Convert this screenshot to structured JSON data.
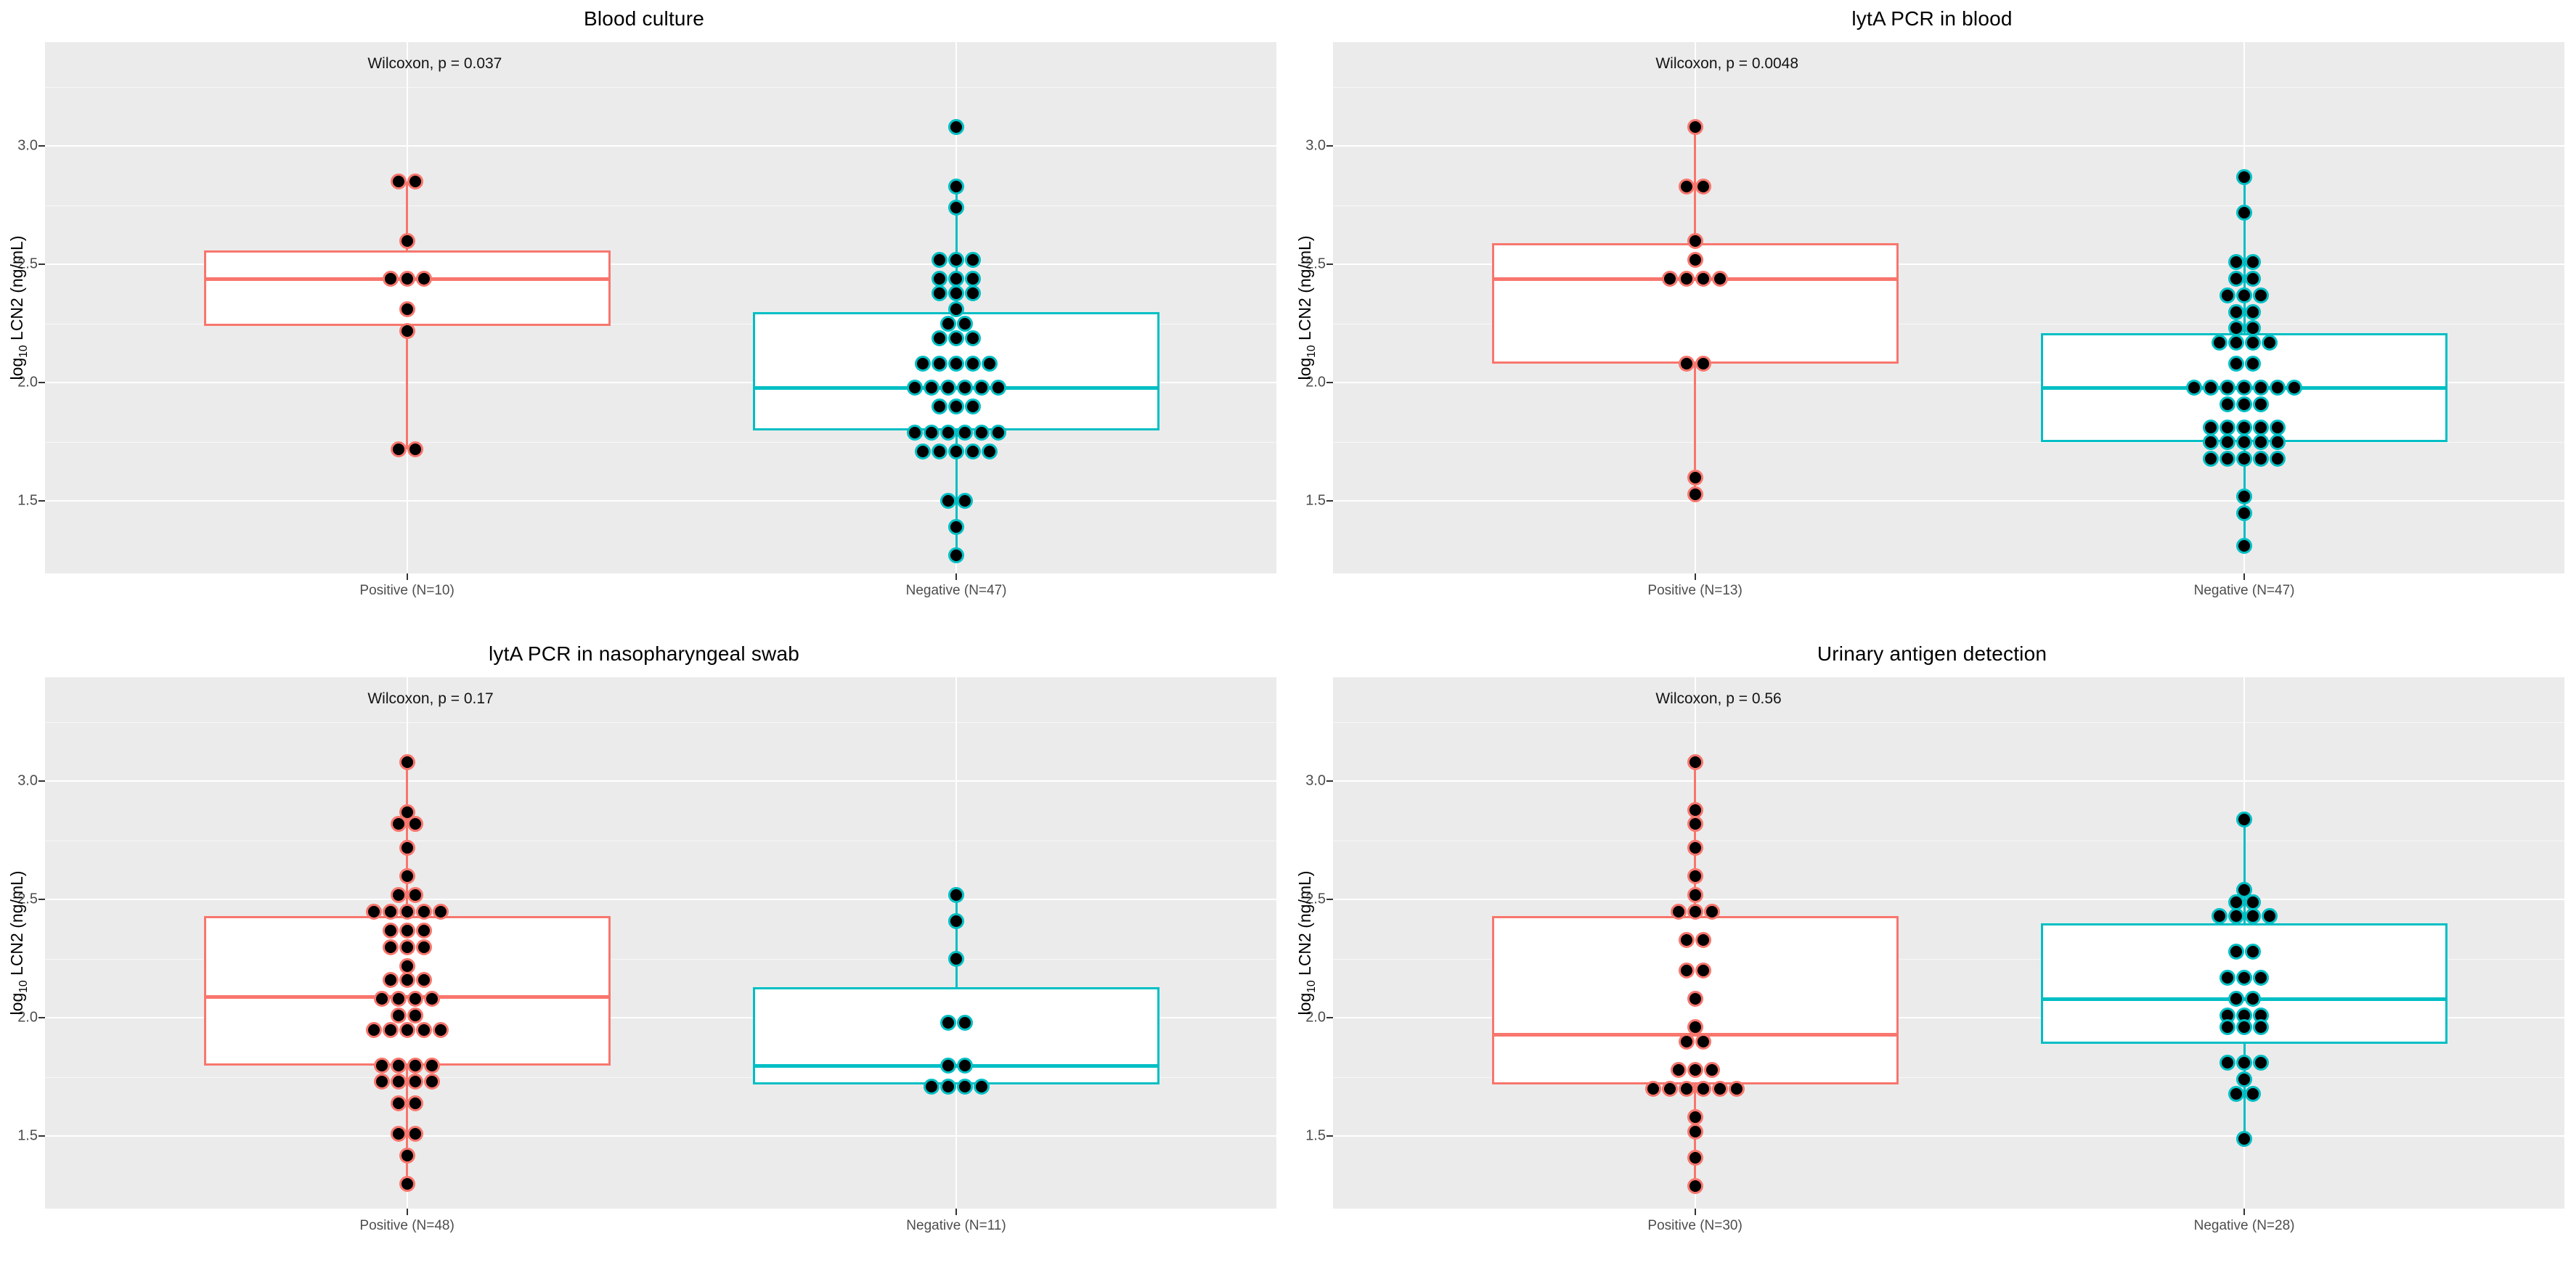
{
  "figure": {
    "background": "#FFFFFF",
    "panel_background": "#EBEBEB",
    "grid_color": "#FFFFFF"
  },
  "colors": {
    "positive": "#F8766D",
    "negative": "#00BFC4",
    "dot_fill": "#000000",
    "axis_text": "#4D4D4D",
    "title_text": "#000000"
  },
  "axis": {
    "ylabel": {
      "prefix": "log",
      "sub": "10",
      "suffix": " LCN2 (ng/mL)"
    },
    "ticks": [
      3.0,
      2.5,
      2.0,
      1.5
    ],
    "tick_labels": [
      "3.0",
      "2.5",
      "2.0",
      "1.5"
    ],
    "minor_ticks": [
      3.25,
      2.75,
      2.25,
      1.75
    ],
    "ylim": [
      1.2,
      3.44
    ],
    "grid": "on",
    "legend": "none"
  },
  "chart_data": [
    {
      "type": "boxplot-dotplot",
      "title": "Blood culture",
      "subtitle": "Wilcoxon, p = 0.037",
      "p_value": "0.037",
      "categories": [
        "Positive (N=10)",
        "Negative (N=47)"
      ],
      "groups": [
        {
          "label": "Positive (N=10)",
          "n": 10,
          "color_key": "positive",
          "box": {
            "q1": 2.24,
            "median": 2.44,
            "q3": 2.56,
            "whisker_low": 1.72,
            "whisker_high": 2.85
          },
          "dot_stacks": [
            [
              2.85,
              2
            ],
            [
              2.6,
              1
            ],
            [
              2.44,
              3
            ],
            [
              2.31,
              1
            ],
            [
              2.22,
              1
            ],
            [
              1.72,
              2
            ]
          ]
        },
        {
          "label": "Negative (N=47)",
          "n": 47,
          "color_key": "negative",
          "box": {
            "q1": 1.8,
            "median": 1.98,
            "q3": 2.3,
            "whisker_low": 1.29,
            "whisker_high": 2.83
          },
          "dot_stacks": [
            [
              3.08,
              1
            ],
            [
              2.83,
              1
            ],
            [
              2.74,
              1
            ],
            [
              2.52,
              3
            ],
            [
              2.44,
              3
            ],
            [
              2.38,
              3
            ],
            [
              2.31,
              1
            ],
            [
              2.25,
              2
            ],
            [
              2.19,
              3
            ],
            [
              2.08,
              5
            ],
            [
              1.98,
              6
            ],
            [
              1.9,
              3
            ],
            [
              1.79,
              6
            ],
            [
              1.71,
              5
            ],
            [
              1.5,
              2
            ],
            [
              1.39,
              1
            ],
            [
              1.27,
              1
            ]
          ]
        }
      ]
    },
    {
      "type": "boxplot-dotplot",
      "title": "lytA PCR in blood",
      "subtitle": "Wilcoxon, p = 0.0048",
      "p_value": "0.0048",
      "categories": [
        "Positive (N=13)",
        "Negative (N=47)"
      ],
      "groups": [
        {
          "label": "Positive (N=13)",
          "n": 13,
          "color_key": "positive",
          "box": {
            "q1": 2.08,
            "median": 2.44,
            "q3": 2.59,
            "whisker_low": 1.53,
            "whisker_high": 3.08
          },
          "dot_stacks": [
            [
              3.08,
              1
            ],
            [
              2.83,
              2
            ],
            [
              2.6,
              1
            ],
            [
              2.52,
              1
            ],
            [
              2.44,
              4
            ],
            [
              2.08,
              2
            ],
            [
              1.6,
              1
            ],
            [
              1.53,
              1
            ]
          ]
        },
        {
          "label": "Negative (N=47)",
          "n": 47,
          "color_key": "negative",
          "box": {
            "q1": 1.75,
            "median": 1.98,
            "q3": 2.21,
            "whisker_low": 1.31,
            "whisker_high": 2.87
          },
          "dot_stacks": [
            [
              2.87,
              1
            ],
            [
              2.72,
              1
            ],
            [
              2.51,
              2
            ],
            [
              2.44,
              2
            ],
            [
              2.37,
              3
            ],
            [
              2.3,
              2
            ],
            [
              2.23,
              2
            ],
            [
              2.17,
              4
            ],
            [
              2.08,
              2
            ],
            [
              1.98,
              7
            ],
            [
              1.91,
              3
            ],
            [
              1.81,
              5
            ],
            [
              1.75,
              5
            ],
            [
              1.68,
              5
            ],
            [
              1.52,
              1
            ],
            [
              1.45,
              1
            ],
            [
              1.31,
              1
            ]
          ]
        }
      ]
    },
    {
      "type": "boxplot-dotplot",
      "title": "lytA PCR in nasopharyngeal swab",
      "subtitle": "Wilcoxon, p = 0.17",
      "p_value": "0.17",
      "categories": [
        "Positive (N=48)",
        "Negative (N=11)"
      ],
      "groups": [
        {
          "label": "Positive (N=48)",
          "n": 48,
          "color_key": "positive",
          "box": {
            "q1": 1.8,
            "median": 2.09,
            "q3": 2.43,
            "whisker_low": 1.3,
            "whisker_high": 3.08
          },
          "dot_stacks": [
            [
              3.08,
              1
            ],
            [
              2.87,
              1
            ],
            [
              2.82,
              2
            ],
            [
              2.72,
              1
            ],
            [
              2.6,
              1
            ],
            [
              2.52,
              2
            ],
            [
              2.45,
              5
            ],
            [
              2.37,
              3
            ],
            [
              2.3,
              3
            ],
            [
              2.22,
              1
            ],
            [
              2.16,
              3
            ],
            [
              2.08,
              4
            ],
            [
              2.01,
              2
            ],
            [
              1.95,
              5
            ],
            [
              1.8,
              4
            ],
            [
              1.73,
              4
            ],
            [
              1.64,
              2
            ],
            [
              1.51,
              2
            ],
            [
              1.42,
              1
            ],
            [
              1.3,
              1
            ]
          ]
        },
        {
          "label": "Negative (N=11)",
          "n": 11,
          "color_key": "negative",
          "box": {
            "q1": 1.72,
            "median": 1.8,
            "q3": 2.13,
            "whisker_low": 1.72,
            "whisker_high": 2.52
          },
          "dot_stacks": [
            [
              2.52,
              1
            ],
            [
              2.41,
              1
            ],
            [
              2.25,
              1
            ],
            [
              1.98,
              2
            ],
            [
              1.8,
              2
            ],
            [
              1.71,
              4
            ]
          ]
        }
      ]
    },
    {
      "type": "boxplot-dotplot",
      "title": "Urinary antigen detection",
      "subtitle": "Wilcoxon, p = 0.56",
      "p_value": "0.56",
      "categories": [
        "Positive (N=30)",
        "Negative (N=28)"
      ],
      "groups": [
        {
          "label": "Positive (N=30)",
          "n": 30,
          "color_key": "positive",
          "box": {
            "q1": 1.72,
            "median": 1.93,
            "q3": 2.43,
            "whisker_low": 1.29,
            "whisker_high": 3.08
          },
          "dot_stacks": [
            [
              3.08,
              1
            ],
            [
              2.88,
              1
            ],
            [
              2.82,
              1
            ],
            [
              2.72,
              1
            ],
            [
              2.6,
              1
            ],
            [
              2.52,
              1
            ],
            [
              2.45,
              3
            ],
            [
              2.33,
              2
            ],
            [
              2.2,
              2
            ],
            [
              2.08,
              1
            ],
            [
              1.96,
              1
            ],
            [
              1.9,
              2
            ],
            [
              1.78,
              3
            ],
            [
              1.7,
              6
            ],
            [
              1.58,
              1
            ],
            [
              1.52,
              1
            ],
            [
              1.41,
              1
            ],
            [
              1.29,
              1
            ]
          ]
        },
        {
          "label": "Negative (N=28)",
          "n": 28,
          "color_key": "negative",
          "box": {
            "q1": 1.89,
            "median": 2.08,
            "q3": 2.4,
            "whisker_low": 1.49,
            "whisker_high": 2.84
          },
          "dot_stacks": [
            [
              2.84,
              1
            ],
            [
              2.54,
              1
            ],
            [
              2.49,
              2
            ],
            [
              2.43,
              4
            ],
            [
              2.28,
              2
            ],
            [
              2.17,
              3
            ],
            [
              2.08,
              2
            ],
            [
              2.01,
              3
            ],
            [
              1.96,
              3
            ],
            [
              1.81,
              3
            ],
            [
              1.74,
              1
            ],
            [
              1.68,
              2
            ],
            [
              1.49,
              1
            ]
          ]
        }
      ]
    }
  ]
}
